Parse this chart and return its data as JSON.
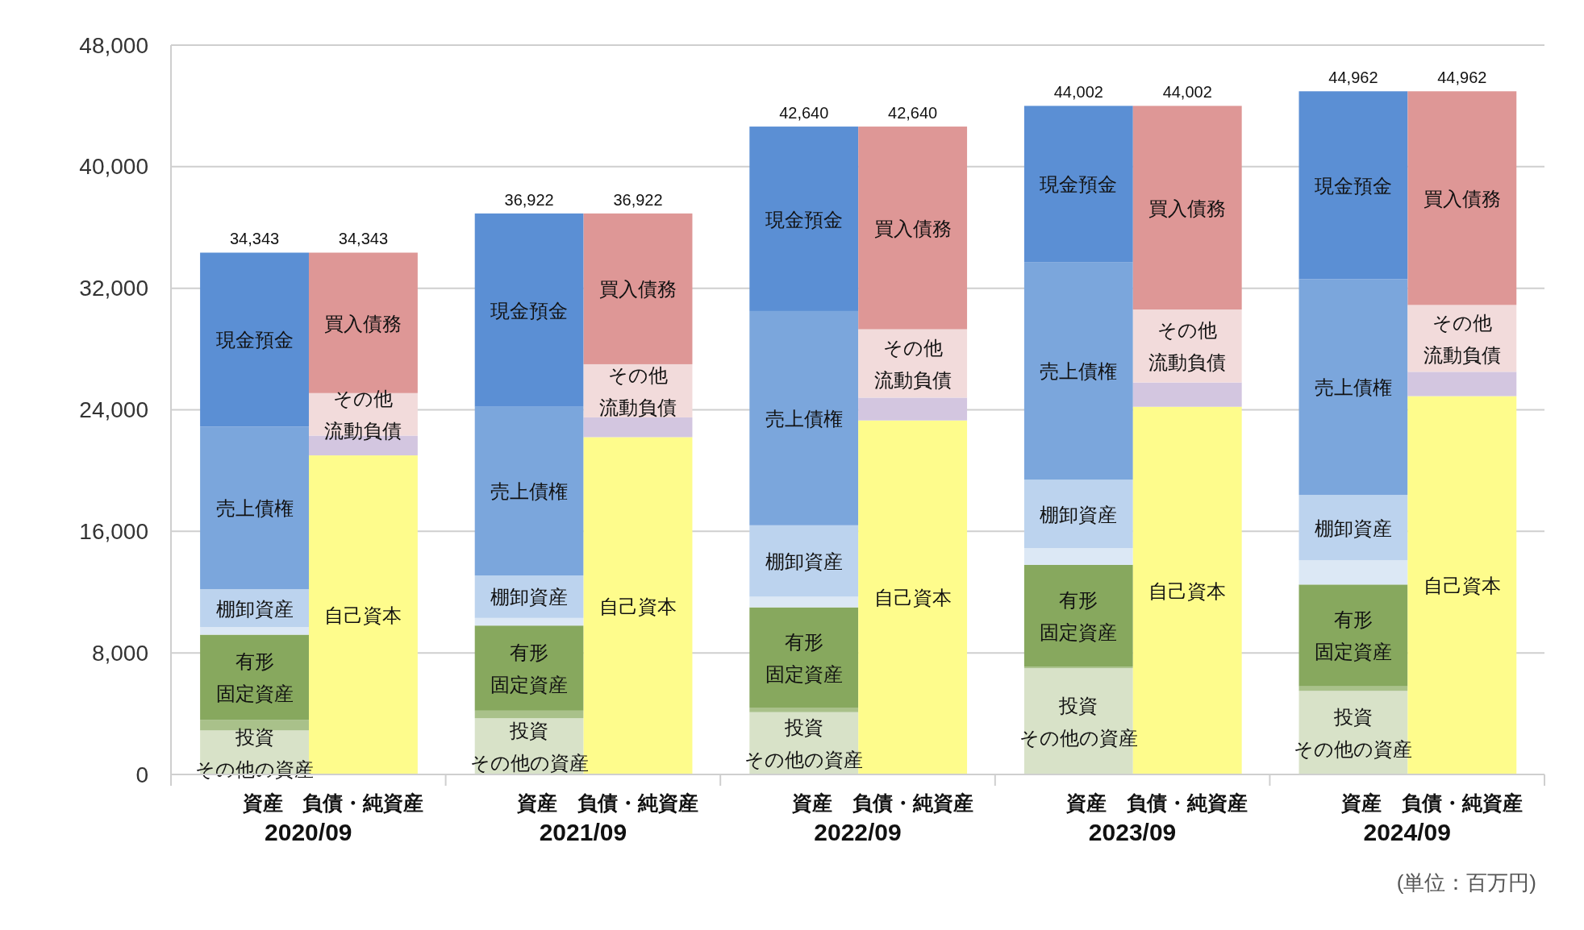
{
  "chart_data": {
    "type": "bar",
    "stacked": true,
    "grid": "y",
    "categories": [
      "資産",
      "負債・純資産",
      "資産",
      "負債・純資産",
      "資産",
      "負債・純資産",
      "資産",
      "負債・純資産",
      "資産",
      "負債・純資産"
    ],
    "ylim": [
      0,
      48000
    ],
    "yticks": [
      {
        "value": 0,
        "label": "0"
      },
      {
        "value": 8000,
        "label": "8,000"
      },
      {
        "value": 16000,
        "label": "16,000"
      },
      {
        "value": 24000,
        "label": "24,000"
      },
      {
        "value": 32000,
        "label": "32,000"
      },
      {
        "value": 40000,
        "label": "40,000"
      },
      {
        "value": 48000,
        "label": "48,000"
      }
    ],
    "series": [
      {
        "name": "投資その他の資産",
        "color": "#d8e2c8",
        "values": [
          2900,
          null,
          3700,
          null,
          4100,
          null,
          7000,
          null,
          5500,
          null
        ]
      },
      {
        "color": "#a9c18a",
        "values": [
          700,
          null,
          500,
          null,
          300,
          null,
          100,
          null,
          300,
          null
        ]
      },
      {
        "name": "有形固定資産",
        "color": "#87a85e",
        "values": [
          5600,
          null,
          5600,
          null,
          6600,
          null,
          6700,
          null,
          6700,
          null
        ]
      },
      {
        "color": "#dce8f5",
        "values": [
          500,
          null,
          500,
          null,
          700,
          null,
          1100,
          null,
          1600,
          null
        ]
      },
      {
        "name": "棚卸資産",
        "color": "#bcd3ee",
        "values": [
          2500,
          null,
          2800,
          null,
          4700,
          null,
          4500,
          null,
          4300,
          null
        ]
      },
      {
        "name": "売上債権",
        "color": "#7ba6dc",
        "values": [
          10700,
          null,
          11100,
          null,
          14100,
          null,
          14300,
          null,
          14200,
          null
        ]
      },
      {
        "name": "現金預金",
        "color": "#5b8fd4",
        "values": [
          11443,
          null,
          12722,
          null,
          12140,
          null,
          10302,
          null,
          12362,
          null
        ]
      },
      {
        "name": "自己資本",
        "color": "#fefc8c",
        "values": [
          null,
          21000,
          null,
          22200,
          null,
          23300,
          null,
          24200,
          null,
          24900
        ]
      },
      {
        "color": "#d3c6e0",
        "values": [
          null,
          1300,
          null,
          1300,
          null,
          1500,
          null,
          1600,
          null,
          1600
        ]
      },
      {
        "name": "その他流動負債",
        "color": "#f2dbdb",
        "values": [
          null,
          2800,
          null,
          3500,
          null,
          4500,
          null,
          4800,
          null,
          4400
        ]
      },
      {
        "name": "買入債務",
        "color": "#de9796",
        "values": [
          null,
          9243,
          null,
          9922,
          null,
          13340,
          null,
          13402,
          null,
          14062
        ]
      }
    ],
    "totals": [
      "34,343",
      "34,343",
      "36,922",
      "36,922",
      "42,640",
      "42,640",
      "44,002",
      "44,002",
      "44,962",
      "44,962"
    ],
    "annotations": [
      "2020/09",
      "2021/09",
      "2022/09",
      "2023/09",
      "2024/09",
      "(単位：百万円)"
    ]
  }
}
